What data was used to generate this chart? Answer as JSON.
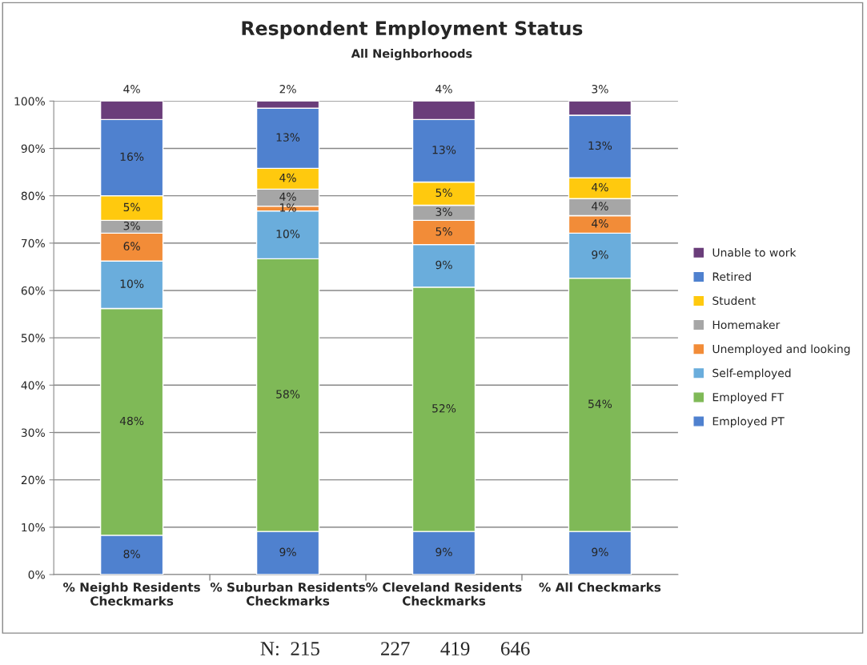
{
  "chart_data": {
    "type": "bar",
    "stacked": true,
    "title": "Respondent Employment Status",
    "subtitle": "All Neighborhoods",
    "categories": [
      "% Neighb Residents\nCheckmarks",
      "% Suburban Residents\nCheckmarks",
      "% Cleveland Residents\nCheckmarks",
      "% All Checkmarks"
    ],
    "series": [
      {
        "name": "Employed PT",
        "color": "#4f81cf",
        "values": [
          8.3,
          9.1,
          9.1,
          9.1
        ],
        "value_labels": [
          "8%",
          "9%",
          "9%",
          "9%"
        ]
      },
      {
        "name": "Employed FT",
        "color": "#7fb957",
        "values": [
          47.9,
          57.6,
          51.6,
          53.5
        ],
        "value_labels": [
          "48%",
          "58%",
          "52%",
          "54%"
        ]
      },
      {
        "name": "Self-employed",
        "color": "#6aaddc",
        "values": [
          10.0,
          10.1,
          9.0,
          9.5
        ],
        "value_labels": [
          "10%",
          "10%",
          "9%",
          "9%"
        ]
      },
      {
        "name": "Unemployed and looking",
        "color": "#f28c38",
        "values": [
          5.9,
          1.0,
          5.1,
          3.7
        ],
        "value_labels": [
          "6%",
          "1%",
          "5%",
          "4%"
        ]
      },
      {
        "name": "Homemaker",
        "color": "#a6a6a6",
        "values": [
          2.7,
          3.6,
          3.2,
          3.6
        ],
        "value_labels": [
          "3%",
          "4%",
          "3%",
          "4%"
        ]
      },
      {
        "name": "Student",
        "color": "#ffc90e",
        "values": [
          5.2,
          4.4,
          4.9,
          4.4
        ],
        "value_labels": [
          "5%",
          "4%",
          "5%",
          "4%"
        ]
      },
      {
        "name": "Retired",
        "color": "#4f81cf",
        "values": [
          16.1,
          12.7,
          13.2,
          13.2
        ],
        "value_labels": [
          "16%",
          "13%",
          "13%",
          "13%"
        ]
      },
      {
        "name": "Unable to work",
        "color": "#6a3d7a",
        "values": [
          3.9,
          1.5,
          3.9,
          3.0
        ],
        "value_labels": [
          "4%",
          "2%",
          "4%",
          "3%"
        ]
      }
    ],
    "ylim": [
      0,
      100
    ],
    "yticks": [
      {
        "value": 0,
        "label": "0%"
      },
      {
        "value": 10,
        "label": "10%"
      },
      {
        "value": 20,
        "label": "20%"
      },
      {
        "value": 30,
        "label": "30%"
      },
      {
        "value": 40,
        "label": "40%"
      },
      {
        "value": 50,
        "label": "50%"
      },
      {
        "value": 60,
        "label": "60%"
      },
      {
        "value": 70,
        "label": "70%"
      },
      {
        "value": 80,
        "label": "80%"
      },
      {
        "value": 90,
        "label": "90%"
      },
      {
        "value": 100,
        "label": "100%"
      }
    ],
    "grid": "y",
    "legend": "right",
    "annotations": [
      "N:  215            227      419      646"
    ]
  }
}
